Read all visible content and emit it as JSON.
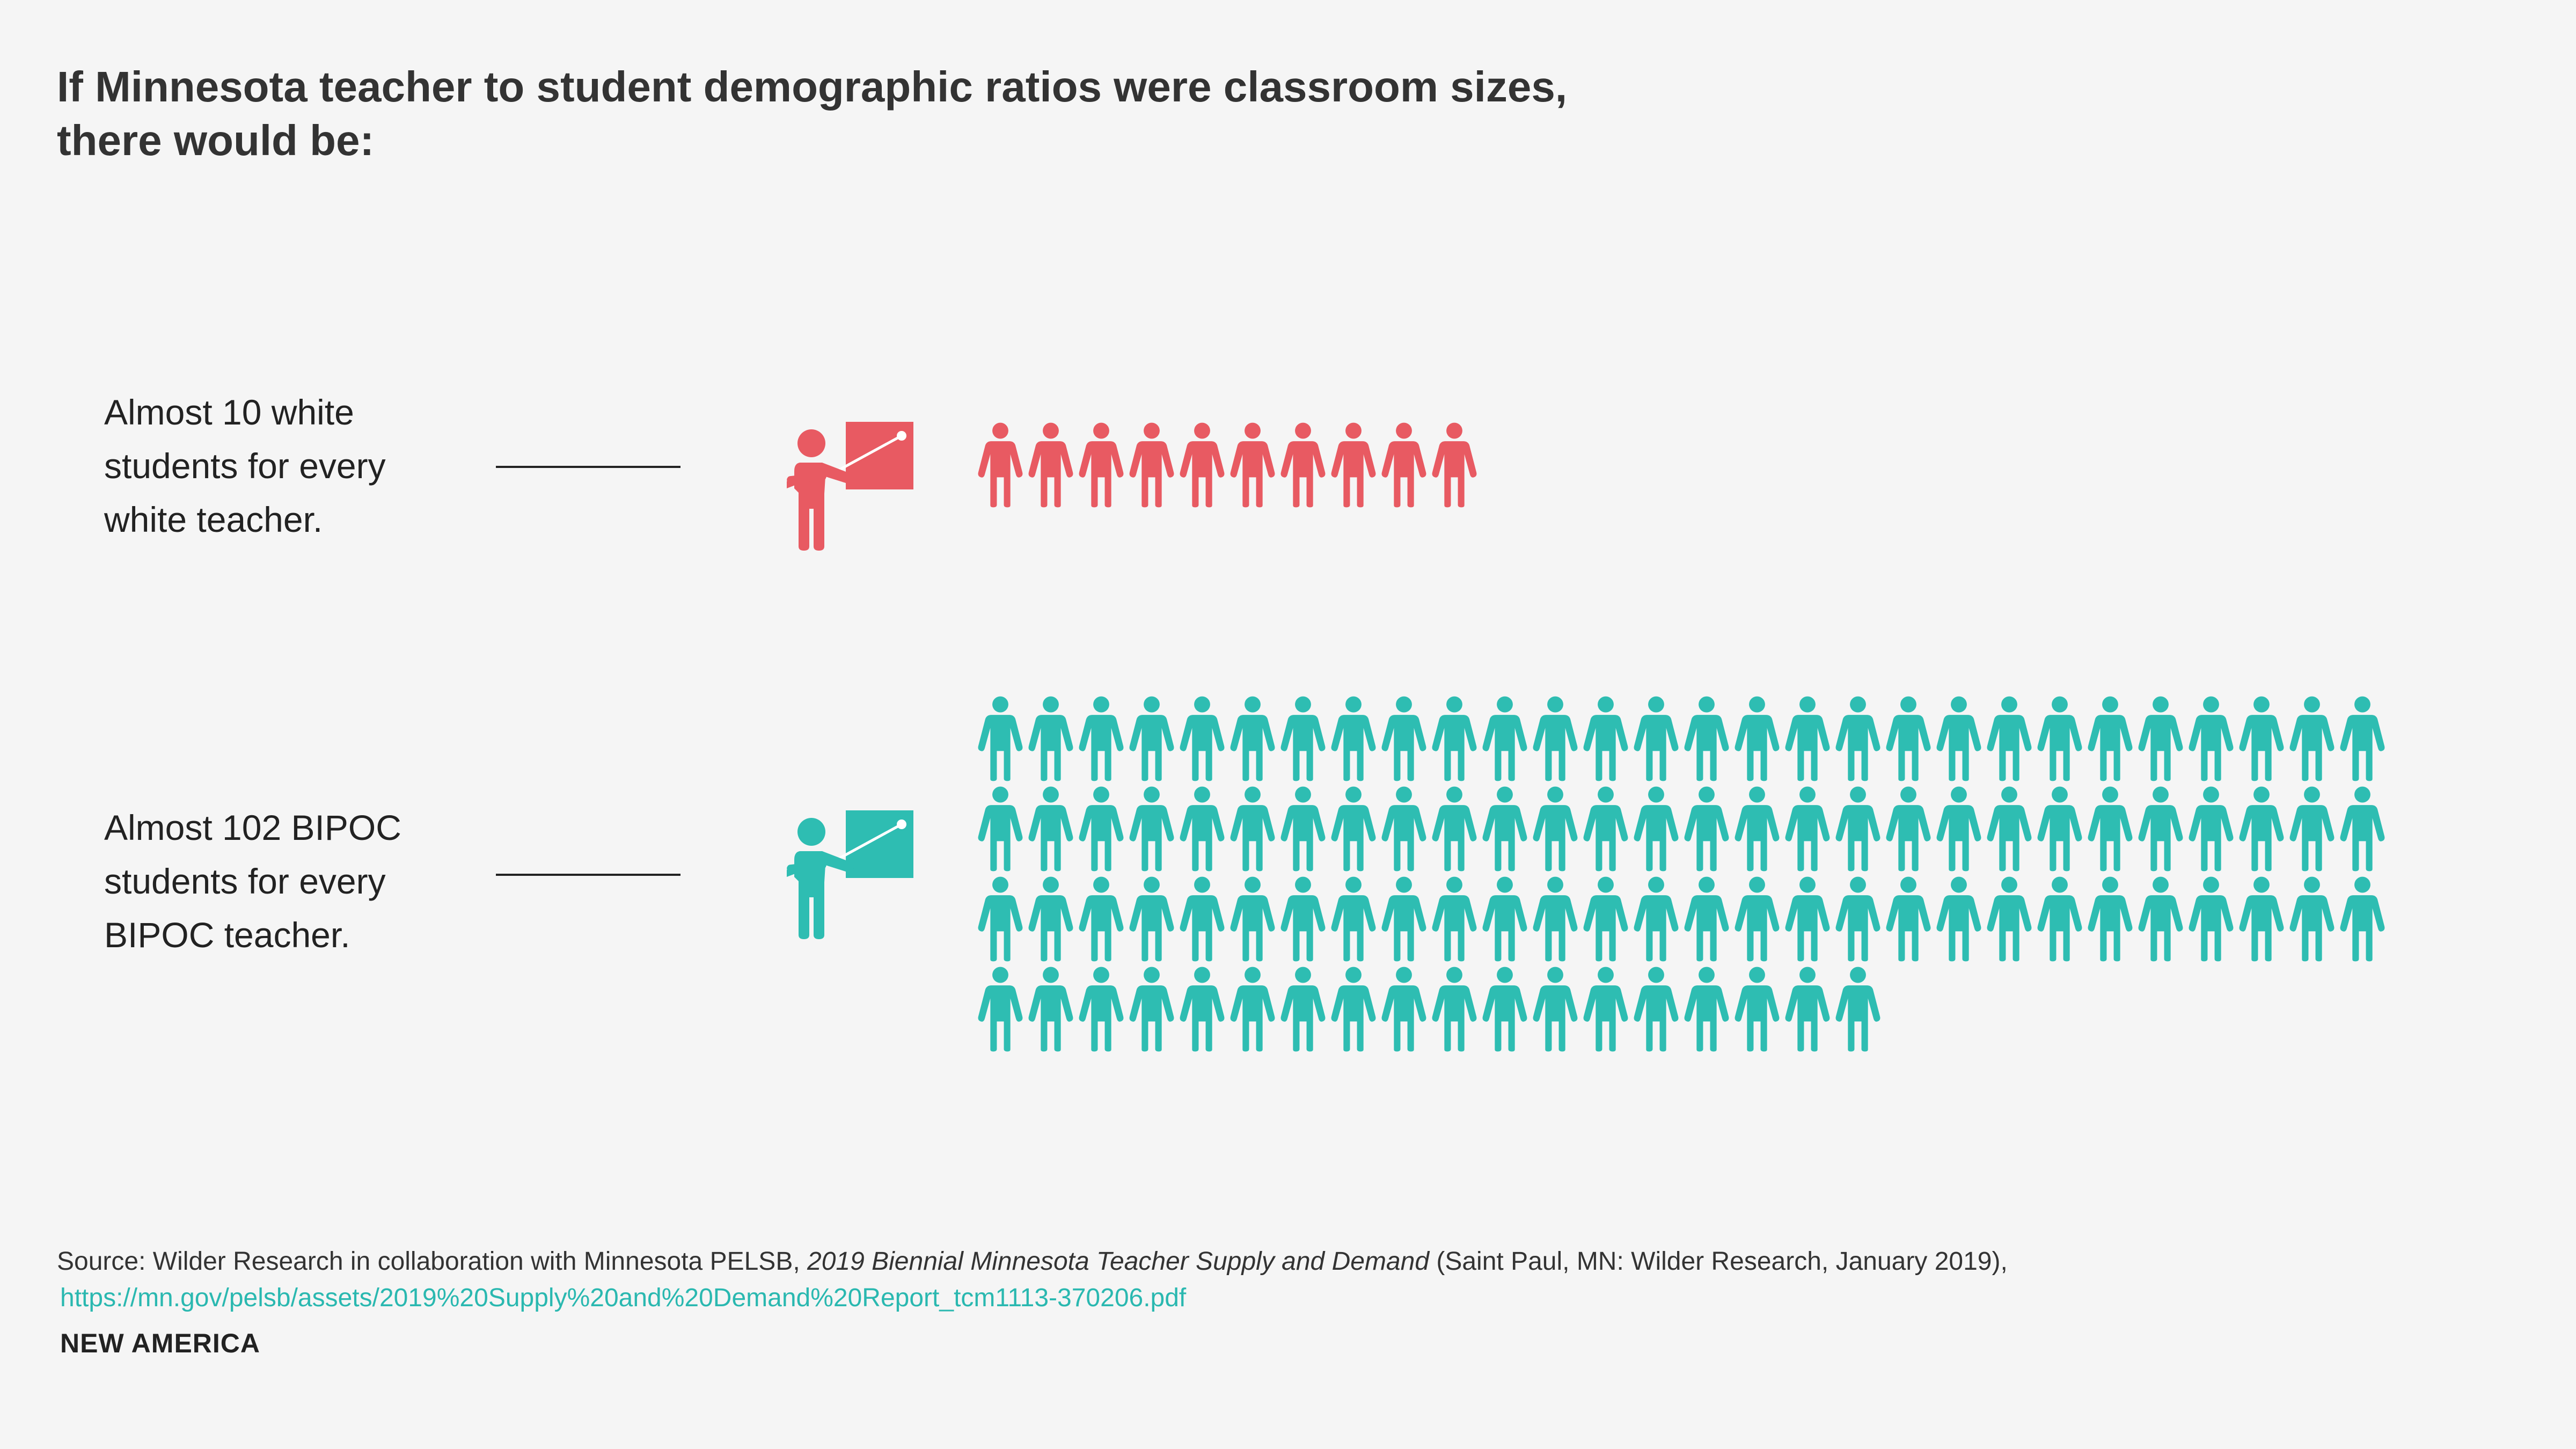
{
  "title_lines": [
    "If Minnesota teacher to student demographic ratios were classroom sizes,",
    "there would be:"
  ],
  "colors": {
    "white_group": "#e85a62",
    "bipoc_group": "#2ebdb2"
  },
  "chart_data": {
    "type": "pictograph",
    "title": "If Minnesota teacher to student demographic ratios were classroom sizes, there would be:",
    "rows": [
      {
        "label_lines": [
          "Almost 10 white",
          "students for every",
          "white teacher."
        ],
        "teachers": 1,
        "students": 10,
        "color": "#e85a62"
      },
      {
        "label_lines": [
          "Almost 102 BIPOC",
          "students for every",
          "BIPOC teacher."
        ],
        "teachers": 1,
        "students": 102,
        "color": "#2ebdb2"
      }
    ]
  },
  "source": {
    "prefix": "Source: Wilder Research in collaboration with Minnesota PELSB, ",
    "italic": "2019 Biennial Minnesota Teacher Supply and Demand",
    "suffix": " (Saint Paul, MN: Wilder Research, January 2019),",
    "link": "https://mn.gov/pelsb/assets/2019%20Supply%20and%20Demand%20Report_tcm1113-370206.pdf"
  },
  "brand": "NEW AMERICA"
}
